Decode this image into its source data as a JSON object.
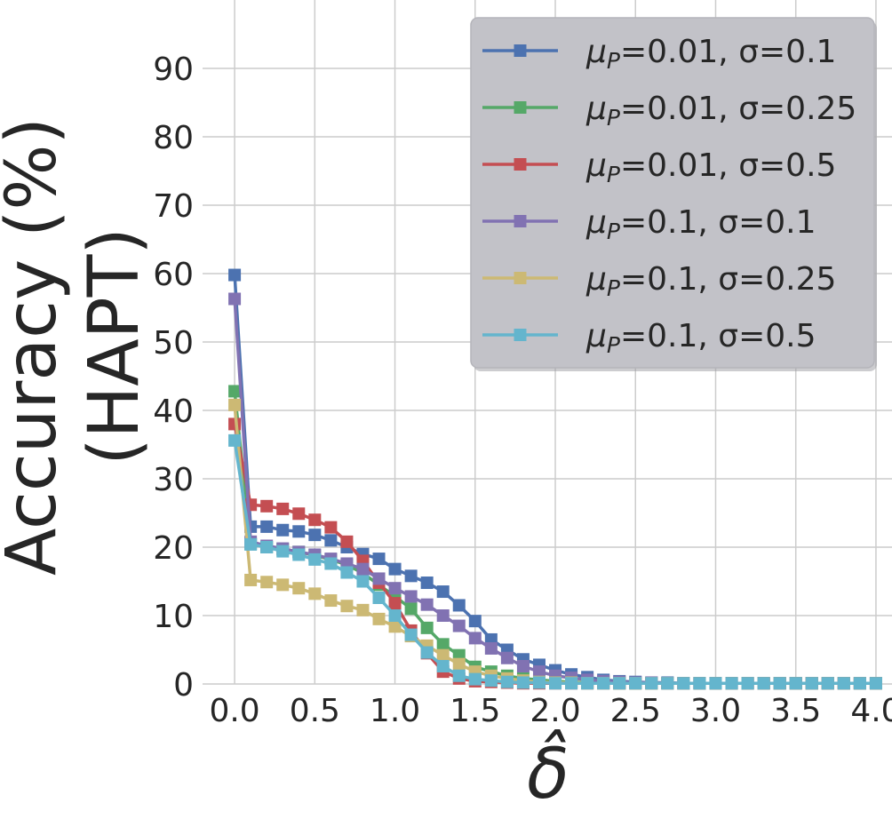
{
  "chart_data": {
    "type": "line",
    "xlabel": "δ̂",
    "ylabel_lines": [
      "Accuracy (%)",
      "(HAPT)"
    ],
    "xlim": [
      -0.2,
      4.1
    ],
    "ylim": [
      0,
      100
    ],
    "x_ticks": [
      0.0,
      0.5,
      1.0,
      1.5,
      2.0,
      2.5,
      3.0,
      3.5,
      4.0
    ],
    "x_tick_labels": [
      "0.0",
      "0.5",
      "1.0",
      "1.5",
      "2.0",
      "2.5",
      "3.0",
      "3.5",
      "4.0"
    ],
    "y_ticks": [
      0,
      10,
      20,
      30,
      40,
      50,
      60,
      70,
      80,
      90
    ],
    "y_tick_labels": [
      "0",
      "10",
      "20",
      "30",
      "40",
      "50",
      "60",
      "70",
      "80",
      "90"
    ],
    "grid": true,
    "legend_position": "top-right",
    "x": [
      0.0,
      0.1,
      0.2,
      0.3,
      0.4,
      0.5,
      0.6,
      0.7,
      0.8,
      0.9,
      1.0,
      1.1,
      1.2,
      1.3,
      1.4,
      1.5,
      1.6,
      1.7,
      1.8,
      1.9,
      2.0,
      2.1,
      2.2,
      2.3,
      2.4,
      2.5,
      2.6,
      2.7,
      2.8,
      2.9,
      3.0,
      3.1,
      3.2,
      3.3,
      3.4,
      3.5,
      3.6,
      3.7,
      3.8,
      3.9,
      4.0
    ],
    "series": [
      {
        "legend_mu": "μ",
        "legend_sub": "P",
        "legend_rest": "=0.01, σ=0.1",
        "color": "#4c72b0",
        "values": [
          59.8,
          23.0,
          23.0,
          22.5,
          22.3,
          21.8,
          21.0,
          20.0,
          19.0,
          18.3,
          16.8,
          15.8,
          14.8,
          13.5,
          11.5,
          9.2,
          6.5,
          5.0,
          3.6,
          2.8,
          2.0,
          1.4,
          1.0,
          0.6,
          0.4,
          0.3,
          0.2,
          0.2,
          0.1,
          0.1,
          0.1,
          0.1,
          0.1,
          0.1,
          0.1,
          0.1,
          0.1,
          0.1,
          0.1,
          0.1,
          0.1
        ]
      },
      {
        "legend_mu": "μ",
        "legend_sub": "P",
        "legend_rest": "=0.01, σ=0.25",
        "color": "#55a868",
        "values": [
          42.8,
          20.5,
          20.0,
          19.7,
          19.3,
          18.8,
          18.2,
          17.4,
          16.2,
          14.5,
          12.8,
          11.0,
          8.2,
          5.8,
          4.2,
          2.5,
          1.8,
          1.2,
          0.8,
          0.6,
          0.4,
          0.3,
          0.2,
          0.2,
          0.1,
          0.1,
          0.1,
          0.1,
          0.1,
          0.1,
          0.1,
          0.1,
          0.1,
          0.1,
          0.1,
          0.1,
          0.1,
          0.1,
          0.1,
          0.1,
          0.1
        ]
      },
      {
        "legend_mu": "μ",
        "legend_sub": "P",
        "legend_rest": "=0.01, σ=0.5",
        "color": "#c44e52",
        "values": [
          38.0,
          26.2,
          26.0,
          25.6,
          24.9,
          24.0,
          22.9,
          20.8,
          18.0,
          14.8,
          11.8,
          7.8,
          4.5,
          1.8,
          0.8,
          0.4,
          0.3,
          0.2,
          0.1,
          0.1,
          0.1,
          0.1,
          0.1,
          0.1,
          0.1,
          0.1,
          0.1,
          0.1,
          0.1,
          0.1,
          0.1,
          0.1,
          0.1,
          0.1,
          0.1,
          0.1,
          0.1,
          0.1,
          0.1,
          0.1,
          0.1
        ]
      },
      {
        "legend_mu": "μ",
        "legend_sub": "P",
        "legend_rest": "=0.1, σ=0.1",
        "color": "#8172b2",
        "values": [
          56.3,
          20.8,
          20.2,
          19.8,
          19.3,
          18.9,
          18.3,
          17.6,
          16.8,
          15.4,
          14.0,
          12.8,
          11.6,
          10.0,
          8.5,
          6.7,
          5.2,
          3.8,
          2.6,
          1.8,
          1.2,
          0.9,
          0.6,
          0.4,
          0.3,
          0.2,
          0.2,
          0.1,
          0.1,
          0.1,
          0.1,
          0.1,
          0.1,
          0.1,
          0.1,
          0.1,
          0.1,
          0.1,
          0.1,
          0.1,
          0.1
        ]
      },
      {
        "legend_mu": "μ",
        "legend_sub": "P",
        "legend_rest": "=0.1, σ=0.25",
        "color": "#ccb974",
        "values": [
          40.8,
          15.2,
          14.9,
          14.5,
          14.0,
          13.2,
          12.2,
          11.4,
          10.8,
          9.5,
          8.4,
          7.0,
          5.6,
          4.2,
          2.9,
          1.8,
          1.2,
          0.8,
          0.5,
          0.3,
          0.2,
          0.2,
          0.1,
          0.1,
          0.1,
          0.1,
          0.1,
          0.1,
          0.1,
          0.1,
          0.1,
          0.1,
          0.1,
          0.1,
          0.1,
          0.1,
          0.1,
          0.1,
          0.1,
          0.1,
          0.1
        ]
      },
      {
        "legend_mu": "μ",
        "legend_sub": "P",
        "legend_rest": "=0.1, σ=0.5",
        "color": "#64b5cd",
        "values": [
          35.6,
          20.4,
          20.0,
          19.4,
          18.9,
          18.2,
          17.6,
          16.3,
          15.0,
          12.6,
          10.0,
          7.2,
          4.6,
          2.6,
          1.2,
          0.7,
          0.5,
          0.3,
          0.2,
          0.2,
          0.1,
          0.1,
          0.1,
          0.1,
          0.1,
          0.1,
          0.1,
          0.1,
          0.1,
          0.1,
          0.1,
          0.1,
          0.1,
          0.1,
          0.1,
          0.1,
          0.1,
          0.1,
          0.1,
          0.1,
          0.1
        ]
      }
    ]
  }
}
